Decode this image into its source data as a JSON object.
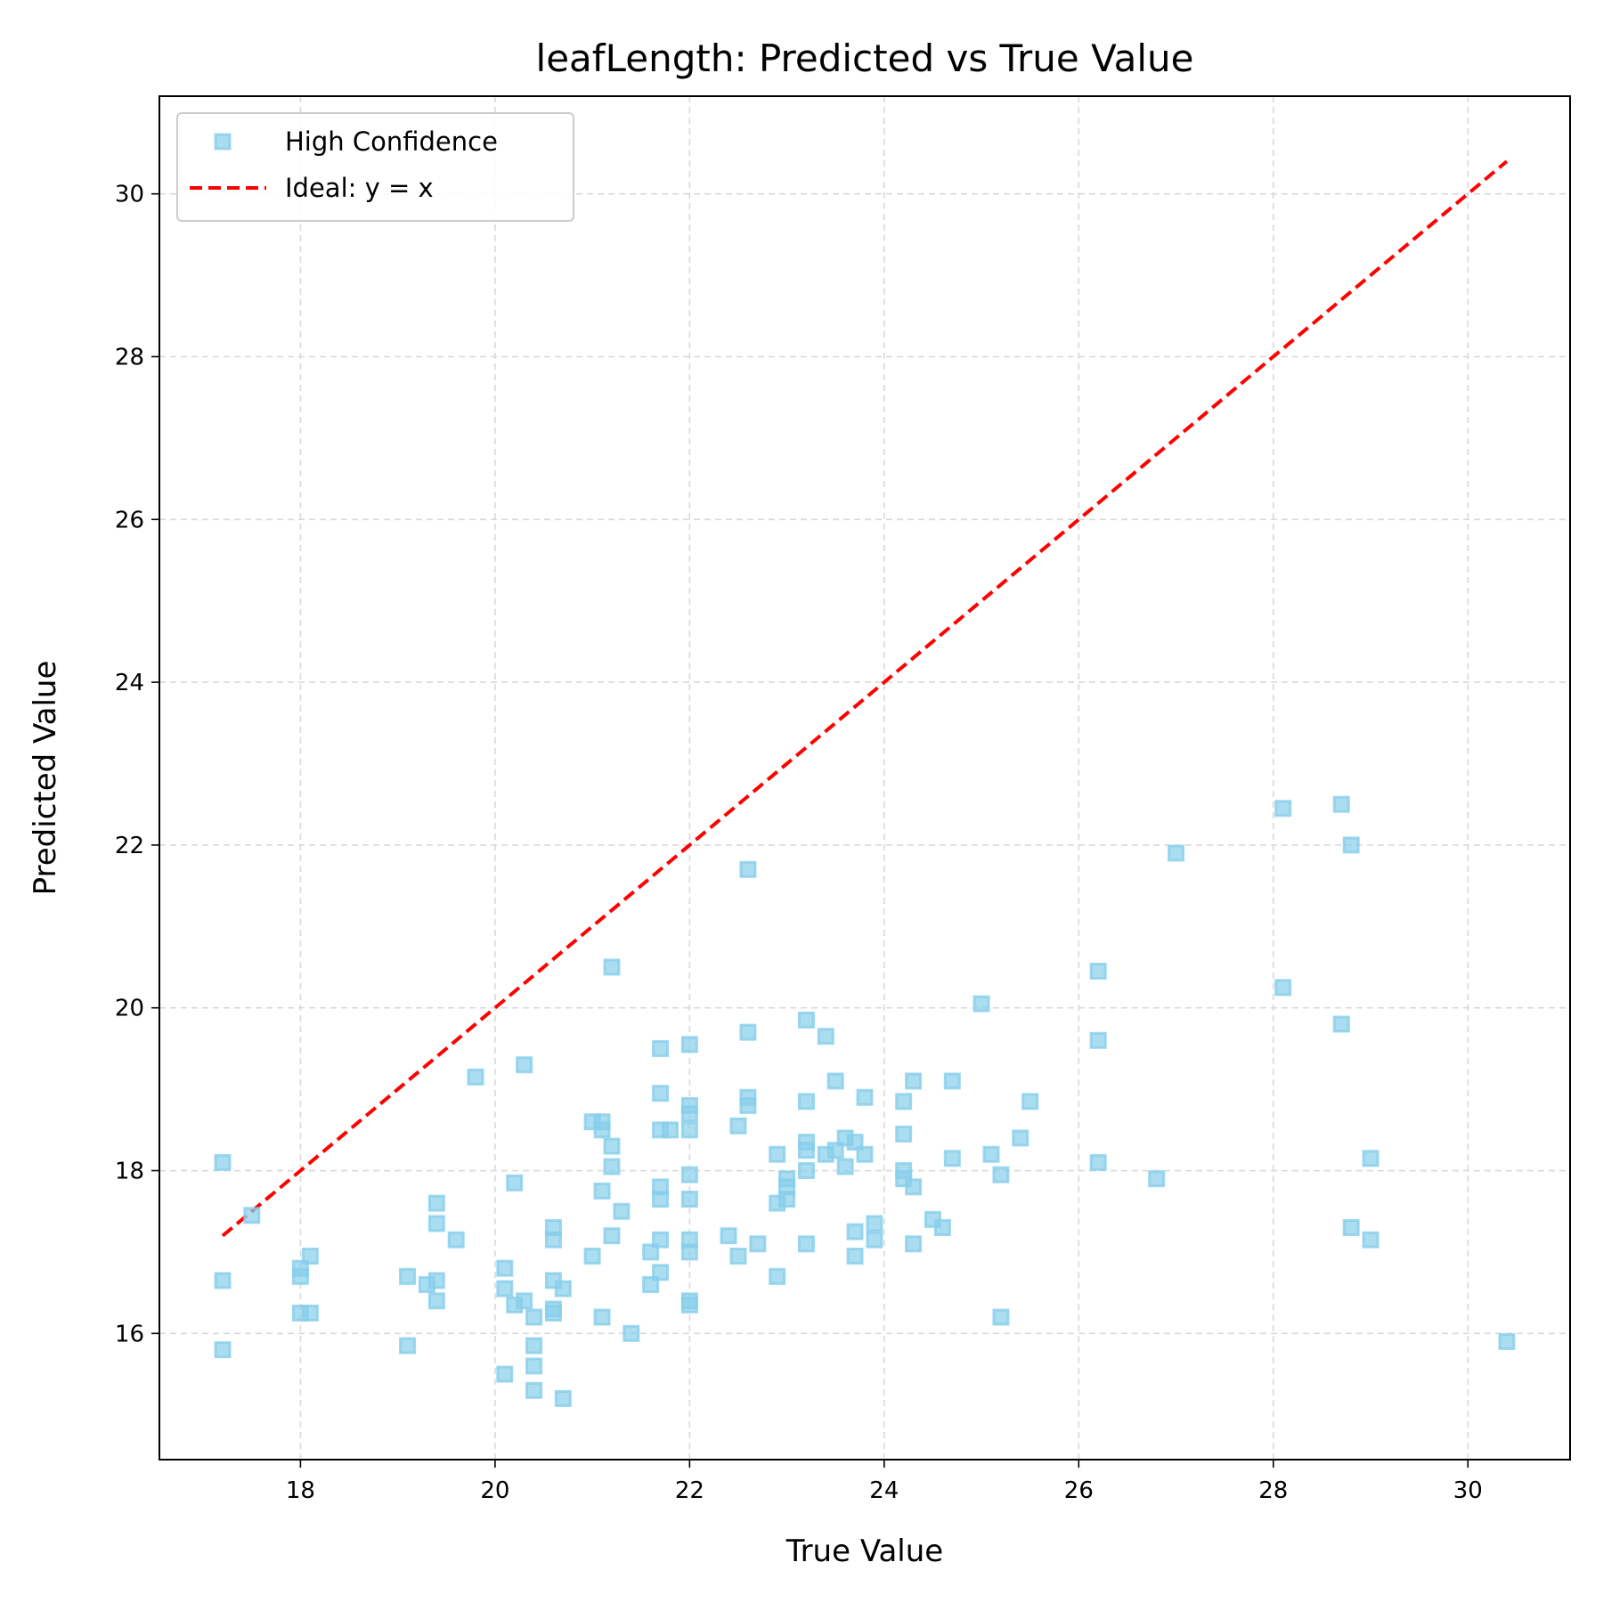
{
  "chart_data": {
    "type": "scatter",
    "title": "leafLength: Predicted vs True Value",
    "xlabel": "True Value",
    "ylabel": "Predicted Value",
    "xlim": [
      16.55,
      31.05
    ],
    "ylim": [
      14.45,
      31.2
    ],
    "xticks": [
      18,
      20,
      22,
      24,
      26,
      28,
      30
    ],
    "yticks": [
      16,
      18,
      20,
      22,
      24,
      26,
      28,
      30
    ],
    "grid": true,
    "legend_position": "top-left",
    "legend": [
      "High Confidence",
      "Ideal: y = x"
    ],
    "series": [
      {
        "name": "High Confidence",
        "type": "scatter",
        "marker": "square",
        "color": "#87ceeb",
        "points": [
          [
            17.2,
            18.1
          ],
          [
            17.2,
            16.65
          ],
          [
            17.2,
            15.8
          ],
          [
            17.5,
            17.45
          ],
          [
            18.0,
            16.8
          ],
          [
            18.0,
            16.7
          ],
          [
            18.0,
            16.25
          ],
          [
            18.1,
            16.95
          ],
          [
            18.1,
            16.25
          ],
          [
            19.1,
            16.7
          ],
          [
            19.1,
            15.85
          ],
          [
            19.3,
            16.6
          ],
          [
            19.4,
            17.6
          ],
          [
            19.4,
            17.35
          ],
          [
            19.4,
            16.65
          ],
          [
            19.4,
            16.4
          ],
          [
            19.6,
            17.15
          ],
          [
            19.8,
            19.15
          ],
          [
            20.1,
            16.8
          ],
          [
            20.1,
            16.55
          ],
          [
            20.1,
            15.5
          ],
          [
            20.2,
            17.85
          ],
          [
            20.2,
            16.35
          ],
          [
            20.3,
            19.3
          ],
          [
            20.3,
            16.4
          ],
          [
            20.4,
            16.2
          ],
          [
            20.4,
            15.85
          ],
          [
            20.4,
            15.6
          ],
          [
            20.4,
            15.3
          ],
          [
            20.6,
            17.3
          ],
          [
            20.6,
            17.15
          ],
          [
            20.6,
            16.65
          ],
          [
            20.6,
            16.3
          ],
          [
            20.6,
            16.25
          ],
          [
            20.7,
            16.55
          ],
          [
            20.7,
            15.2
          ],
          [
            21.0,
            18.6
          ],
          [
            21.0,
            16.95
          ],
          [
            21.1,
            18.6
          ],
          [
            21.1,
            18.5
          ],
          [
            21.1,
            17.75
          ],
          [
            21.1,
            16.2
          ],
          [
            21.2,
            20.5
          ],
          [
            21.2,
            18.3
          ],
          [
            21.2,
            18.05
          ],
          [
            21.2,
            17.2
          ],
          [
            21.3,
            17.5
          ],
          [
            21.4,
            16.0
          ],
          [
            21.6,
            17.0
          ],
          [
            21.6,
            16.6
          ],
          [
            21.7,
            19.5
          ],
          [
            21.7,
            18.95
          ],
          [
            21.7,
            18.5
          ],
          [
            21.7,
            17.8
          ],
          [
            21.7,
            17.65
          ],
          [
            21.7,
            17.15
          ],
          [
            21.7,
            16.75
          ],
          [
            21.8,
            18.5
          ],
          [
            22.0,
            19.55
          ],
          [
            22.0,
            18.8
          ],
          [
            22.0,
            18.7
          ],
          [
            22.0,
            18.5
          ],
          [
            22.0,
            17.95
          ],
          [
            22.0,
            17.65
          ],
          [
            22.0,
            17.15
          ],
          [
            22.0,
            17.0
          ],
          [
            22.0,
            16.4
          ],
          [
            22.0,
            16.35
          ],
          [
            22.4,
            17.2
          ],
          [
            22.5,
            18.55
          ],
          [
            22.5,
            16.95
          ],
          [
            22.6,
            21.7
          ],
          [
            22.6,
            19.7
          ],
          [
            22.6,
            18.9
          ],
          [
            22.6,
            18.8
          ],
          [
            22.7,
            17.1
          ],
          [
            22.9,
            18.2
          ],
          [
            22.9,
            17.6
          ],
          [
            22.9,
            16.7
          ],
          [
            23.0,
            17.9
          ],
          [
            23.0,
            17.8
          ],
          [
            23.0,
            17.65
          ],
          [
            23.2,
            19.85
          ],
          [
            23.2,
            18.85
          ],
          [
            23.2,
            18.35
          ],
          [
            23.2,
            18.25
          ],
          [
            23.2,
            18.0
          ],
          [
            23.2,
            17.1
          ],
          [
            23.4,
            19.65
          ],
          [
            23.4,
            18.2
          ],
          [
            23.5,
            19.1
          ],
          [
            23.5,
            18.25
          ],
          [
            23.6,
            18.4
          ],
          [
            23.6,
            18.05
          ],
          [
            23.7,
            18.35
          ],
          [
            23.7,
            17.25
          ],
          [
            23.7,
            16.95
          ],
          [
            23.8,
            18.9
          ],
          [
            23.8,
            18.2
          ],
          [
            23.9,
            17.35
          ],
          [
            23.9,
            17.15
          ],
          [
            24.2,
            18.85
          ],
          [
            24.2,
            18.45
          ],
          [
            24.2,
            18.0
          ],
          [
            24.2,
            17.9
          ],
          [
            24.3,
            19.1
          ],
          [
            24.3,
            17.8
          ],
          [
            24.3,
            17.1
          ],
          [
            24.5,
            17.4
          ],
          [
            24.6,
            17.3
          ],
          [
            24.7,
            19.1
          ],
          [
            24.7,
            18.15
          ],
          [
            25.0,
            20.05
          ],
          [
            25.1,
            18.2
          ],
          [
            25.2,
            17.95
          ],
          [
            25.2,
            16.2
          ],
          [
            25.4,
            18.4
          ],
          [
            25.5,
            18.85
          ],
          [
            26.2,
            20.45
          ],
          [
            26.2,
            19.6
          ],
          [
            26.2,
            18.1
          ],
          [
            26.8,
            17.9
          ],
          [
            27.0,
            21.9
          ],
          [
            28.1,
            22.45
          ],
          [
            28.1,
            20.25
          ],
          [
            28.7,
            22.5
          ],
          [
            28.7,
            19.8
          ],
          [
            28.8,
            22.0
          ],
          [
            28.8,
            17.3
          ],
          [
            29.0,
            18.15
          ],
          [
            29.0,
            17.15
          ],
          [
            30.4,
            15.9
          ]
        ]
      },
      {
        "name": "Ideal: y = x",
        "type": "line",
        "style": "dashed",
        "color": "#ff0000",
        "x": [
          17.2,
          30.4
        ],
        "y": [
          17.2,
          30.4
        ]
      }
    ]
  }
}
